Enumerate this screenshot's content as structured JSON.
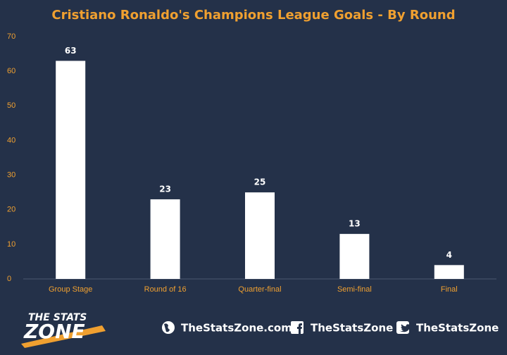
{
  "chart_data": {
    "type": "bar",
    "title": "Cristiano Ronaldo's Champions League Goals - By Round",
    "categories": [
      "Group Stage",
      "Round of 16",
      "Quarter-final",
      "Semi-final",
      "Final"
    ],
    "values": [
      63,
      23,
      25,
      13,
      4
    ],
    "color": "#ffffff",
    "ylim": [
      0,
      70
    ],
    "yticks": [
      0,
      10,
      20,
      30,
      40,
      50,
      60,
      70
    ],
    "grid": false
  },
  "footer": {
    "logo_top": "THE STATS",
    "logo_bottom": "ZONE",
    "website": "TheStatsZone.com",
    "facebook": "TheStatsZone",
    "twitter": "TheStatsZone"
  }
}
